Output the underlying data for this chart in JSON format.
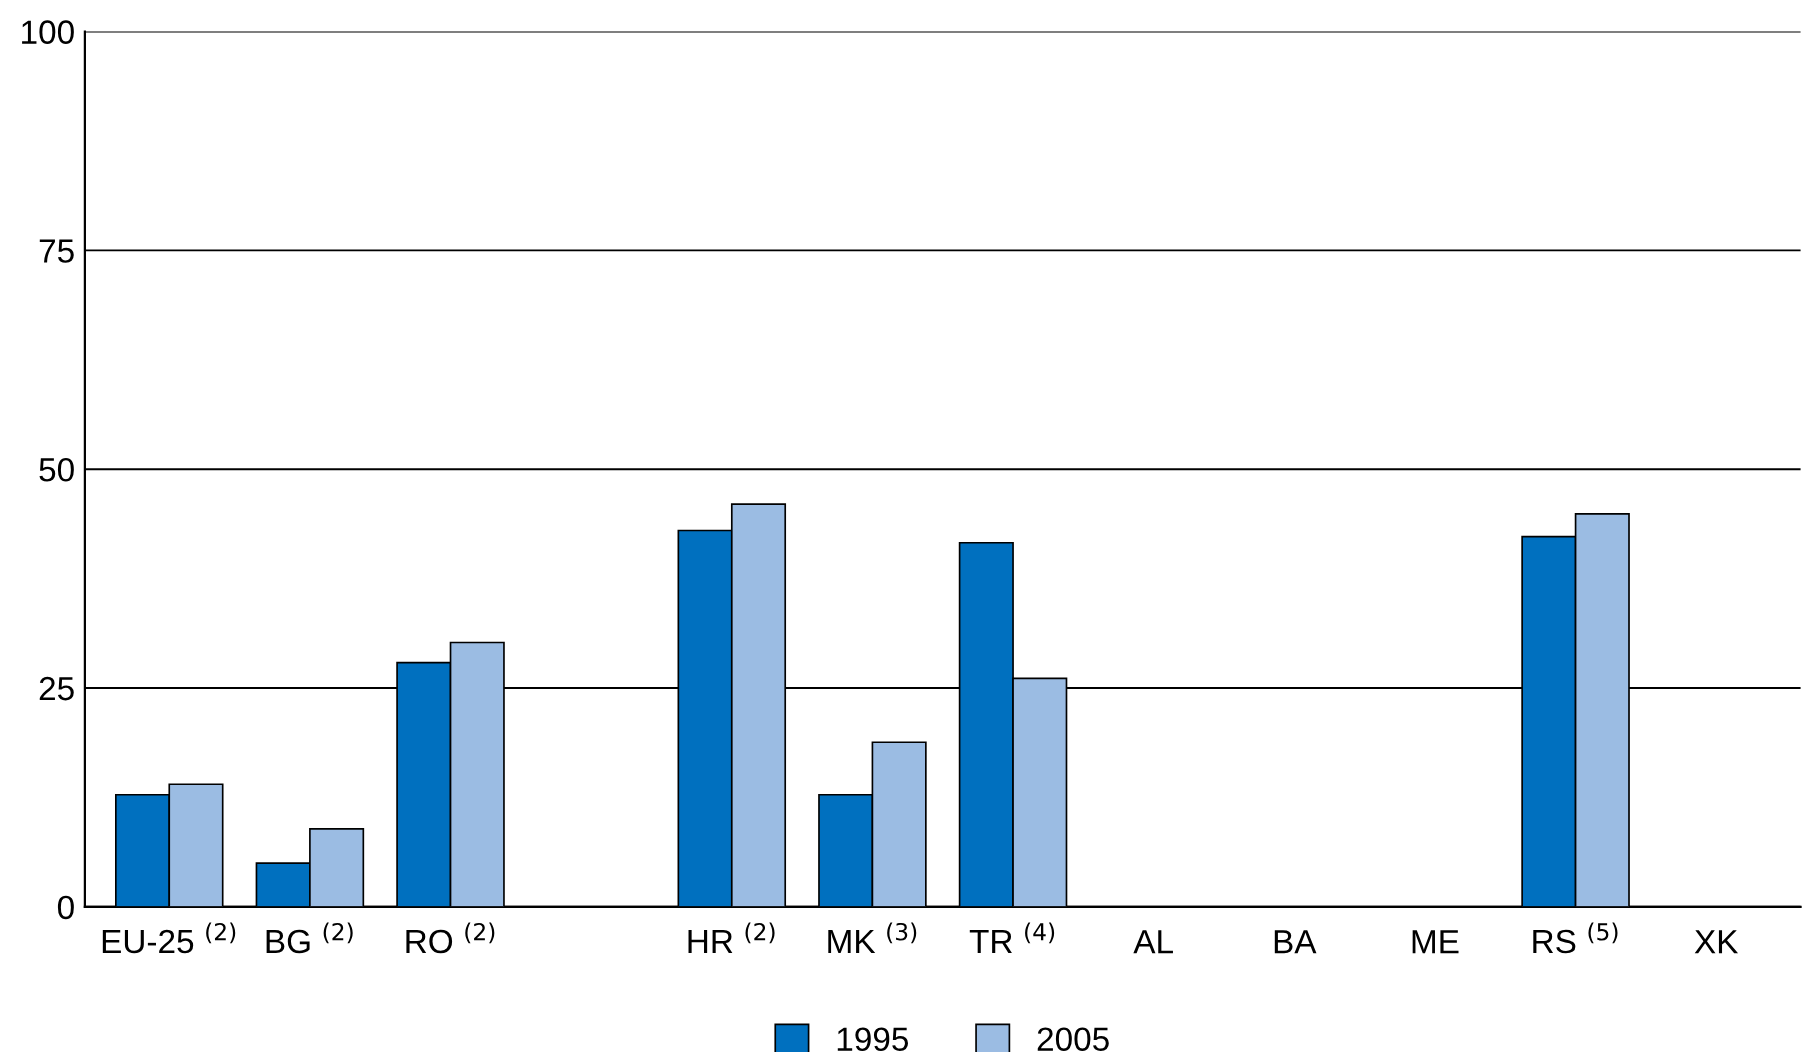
{
  "chart_data": {
    "type": "bar",
    "categories": [
      "EU-25 $^{(2)}$",
      "BG $^{(2)}$",
      "RO $^{(2)}$",
      null,
      "HR $^{(2)}$",
      "MK $^{(3)}$",
      "TR $^{(4)}$",
      "AL",
      "BA",
      "ME",
      "RS $^{(5)}$",
      "XK"
    ],
    "series": [
      {
        "name": "1995",
        "color": "#0070bf",
        "values": [
          12.8,
          5.0,
          27.9,
          null,
          43.0,
          12.8,
          41.6,
          null,
          null,
          null,
          42.3,
          null
        ]
      },
      {
        "name": "2005",
        "color": "#9bbce3",
        "values": [
          14.0,
          8.9,
          30.2,
          null,
          46.0,
          18.8,
          26.1,
          null,
          null,
          null,
          44.9,
          null
        ]
      }
    ],
    "ylim": [
      0,
      100
    ],
    "yticks": [
      0,
      25,
      50,
      75,
      100
    ],
    "grid": "y",
    "legend": "bottom"
  }
}
